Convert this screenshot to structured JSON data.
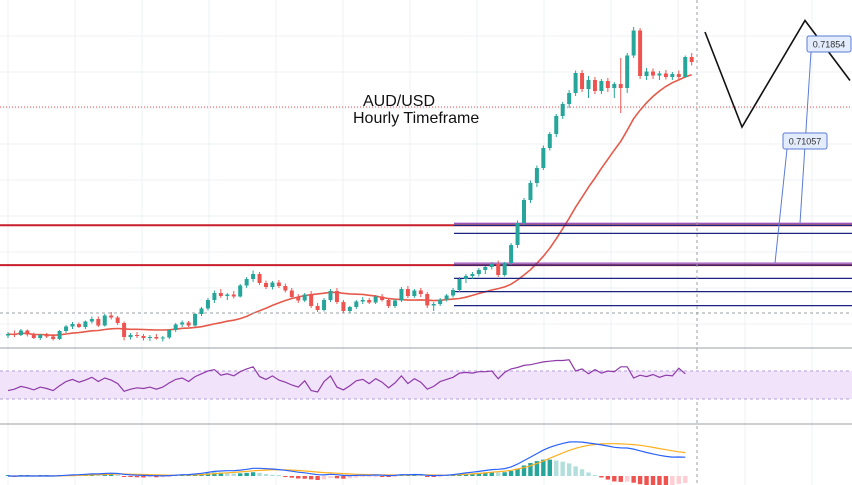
{
  "title": {
    "pair": "AUD/USD",
    "timeframe": "Hourly Timeframe"
  },
  "colors": {
    "background": "#ffffff",
    "grid": "#eef0f4",
    "up_candle": "#26a69a",
    "down_candle": "#ef5350",
    "moving_average": "#e55a4a",
    "resistance_line": "#c81e2c",
    "fib_line": "#1a237e",
    "rsi_line": "#8e3aa8",
    "rsi_band": "#f1e3fa",
    "macd_line": "#2962ff",
    "signal_line": "#ffb020",
    "hist_up_strong": "#26a69a",
    "hist_up_weak": "#b2dfdb",
    "hist_down_strong": "#ef5350",
    "hist_down_weak": "#ffcdd2",
    "projection": "#111111",
    "label_fill": "#e3ecfb",
    "label_border": "#5b7bd5"
  },
  "chart_data": {
    "type": "candlestick",
    "instrument": "AUD/USD",
    "timeframe": "Hourly",
    "price_axis": {
      "visible": false
    },
    "levels": {
      "resistance": 0.71854,
      "support": 0.71057,
      "fib_levels": [
        0.71854,
        0.71692,
        0.71057,
        0.70792,
        0.70527,
        0.70248
      ]
    },
    "level_labels": [
      {
        "text": "0.71854",
        "value": 0.71854
      },
      {
        "text": "0.71057",
        "value": 0.71057
      }
    ],
    "candles": [
      [
        0.6965,
        0.6972,
        0.696,
        0.6968
      ],
      [
        0.6968,
        0.6975,
        0.6962,
        0.6966
      ],
      [
        0.6966,
        0.6978,
        0.6964,
        0.6975
      ],
      [
        0.6975,
        0.6977,
        0.6963,
        0.6967
      ],
      [
        0.6967,
        0.6971,
        0.6958,
        0.696
      ],
      [
        0.696,
        0.6968,
        0.6956,
        0.6966
      ],
      [
        0.6966,
        0.697,
        0.696,
        0.6963
      ],
      [
        0.6963,
        0.6968,
        0.6955,
        0.6958
      ],
      [
        0.6958,
        0.6976,
        0.6956,
        0.6974
      ],
      [
        0.6974,
        0.6986,
        0.697,
        0.6983
      ],
      [
        0.6983,
        0.6992,
        0.6978,
        0.6988
      ],
      [
        0.6988,
        0.6991,
        0.698,
        0.6982
      ],
      [
        0.6982,
        0.6995,
        0.6978,
        0.6993
      ],
      [
        0.6993,
        0.7003,
        0.6989,
        0.6998
      ],
      [
        0.6998,
        0.7003,
        0.6982,
        0.6985
      ],
      [
        0.6985,
        0.7008,
        0.6983,
        0.7005
      ],
      [
        0.7005,
        0.7012,
        0.6997,
        0.7001
      ],
      [
        0.7001,
        0.7004,
        0.6986,
        0.699
      ],
      [
        0.699,
        0.6993,
        0.6955,
        0.6962
      ],
      [
        0.6962,
        0.697,
        0.6957,
        0.6966
      ],
      [
        0.6966,
        0.6972,
        0.696,
        0.6964
      ],
      [
        0.6964,
        0.6968,
        0.6955,
        0.696
      ],
      [
        0.696,
        0.6966,
        0.6954,
        0.6962
      ],
      [
        0.6962,
        0.6968,
        0.6957,
        0.6959
      ],
      [
        0.6959,
        0.6964,
        0.6953,
        0.6961
      ],
      [
        0.6961,
        0.6978,
        0.6958,
        0.6976
      ],
      [
        0.6976,
        0.699,
        0.6972,
        0.6987
      ],
      [
        0.6987,
        0.6995,
        0.6982,
        0.6991
      ],
      [
        0.6991,
        0.6994,
        0.6982,
        0.6985
      ],
      [
        0.6985,
        0.701,
        0.6983,
        0.7008
      ],
      [
        0.7008,
        0.7022,
        0.7004,
        0.7019
      ],
      [
        0.7019,
        0.704,
        0.7015,
        0.7036
      ],
      [
        0.7036,
        0.7055,
        0.703,
        0.705
      ],
      [
        0.705,
        0.7058,
        0.704,
        0.7044
      ],
      [
        0.7044,
        0.705,
        0.7036,
        0.7047
      ],
      [
        0.7047,
        0.7054,
        0.7039,
        0.7043
      ],
      [
        0.7043,
        0.7068,
        0.7041,
        0.7065
      ],
      [
        0.7065,
        0.7082,
        0.706,
        0.7078
      ],
      [
        0.7078,
        0.7095,
        0.7072,
        0.7088
      ],
      [
        0.7088,
        0.7092,
        0.7066,
        0.707
      ],
      [
        0.707,
        0.7075,
        0.7058,
        0.7062
      ],
      [
        0.7062,
        0.7074,
        0.7057,
        0.7071
      ],
      [
        0.7071,
        0.7076,
        0.706,
        0.7064
      ],
      [
        0.7064,
        0.7069,
        0.7051,
        0.7055
      ],
      [
        0.7055,
        0.706,
        0.7038,
        0.7042
      ],
      [
        0.7042,
        0.7048,
        0.703,
        0.7035
      ],
      [
        0.7035,
        0.705,
        0.7032,
        0.7047
      ],
      [
        0.7047,
        0.7054,
        0.702,
        0.7024
      ],
      [
        0.7024,
        0.703,
        0.7012,
        0.7016
      ],
      [
        0.7016,
        0.704,
        0.7013,
        0.7036
      ],
      [
        0.7036,
        0.7058,
        0.7032,
        0.7054
      ],
      [
        0.7054,
        0.706,
        0.7028,
        0.7032
      ],
      [
        0.7032,
        0.7036,
        0.701,
        0.7014
      ],
      [
        0.7014,
        0.7024,
        0.701,
        0.7022
      ],
      [
        0.7022,
        0.7036,
        0.7018,
        0.7033
      ],
      [
        0.7033,
        0.7042,
        0.7028,
        0.7036
      ],
      [
        0.7036,
        0.704,
        0.7028,
        0.7031
      ],
      [
        0.7031,
        0.7046,
        0.7028,
        0.7043
      ],
      [
        0.7043,
        0.7048,
        0.7033,
        0.7036
      ],
      [
        0.7036,
        0.704,
        0.702,
        0.7024
      ],
      [
        0.7024,
        0.7038,
        0.702,
        0.7035
      ],
      [
        0.7035,
        0.7062,
        0.7032,
        0.7058
      ],
      [
        0.7058,
        0.7064,
        0.704,
        0.7044
      ],
      [
        0.7044,
        0.7058,
        0.704,
        0.7055
      ],
      [
        0.7055,
        0.706,
        0.7042,
        0.7048
      ],
      [
        0.7048,
        0.7052,
        0.702,
        0.7025
      ],
      [
        0.7025,
        0.7032,
        0.7014,
        0.7028
      ],
      [
        0.7028,
        0.704,
        0.7024,
        0.7037
      ],
      [
        0.7037,
        0.7048,
        0.7033,
        0.7045
      ],
      [
        0.7045,
        0.706,
        0.7041,
        0.7056
      ],
      [
        0.7056,
        0.7082,
        0.7052,
        0.7078
      ],
      [
        0.7078,
        0.7088,
        0.707,
        0.7084
      ],
      [
        0.7084,
        0.7092,
        0.7078,
        0.7088
      ],
      [
        0.7088,
        0.71,
        0.7083,
        0.7096
      ],
      [
        0.7096,
        0.7104,
        0.7088,
        0.7102
      ],
      [
        0.7102,
        0.7112,
        0.7097,
        0.7108
      ],
      [
        0.7108,
        0.7115,
        0.7082,
        0.7086
      ],
      [
        0.7086,
        0.7112,
        0.7083,
        0.711
      ],
      [
        0.711,
        0.715,
        0.7106,
        0.7146
      ],
      [
        0.7146,
        0.7195,
        0.714,
        0.719
      ],
      [
        0.719,
        0.724,
        0.7186,
        0.7236
      ],
      [
        0.7236,
        0.7275,
        0.723,
        0.727
      ],
      [
        0.727,
        0.7305,
        0.7262,
        0.73
      ],
      [
        0.73,
        0.7345,
        0.7296,
        0.734
      ],
      [
        0.734,
        0.7372,
        0.7335,
        0.7368
      ],
      [
        0.7368,
        0.7408,
        0.7362,
        0.7404
      ],
      [
        0.7404,
        0.7432,
        0.7398,
        0.7428
      ],
      [
        0.7428,
        0.7456,
        0.742,
        0.745
      ],
      [
        0.745,
        0.7495,
        0.7444,
        0.749
      ],
      [
        0.749,
        0.7496,
        0.7452,
        0.7458
      ],
      [
        0.7458,
        0.7484,
        0.744,
        0.7476
      ],
      [
        0.7476,
        0.7482,
        0.7448,
        0.7454
      ],
      [
        0.7454,
        0.7478,
        0.7448,
        0.7474
      ],
      [
        0.7474,
        0.748,
        0.7452,
        0.746
      ],
      [
        0.746,
        0.7472,
        0.744,
        0.7468
      ],
      [
        0.7468,
        0.752,
        0.741,
        0.746
      ],
      [
        0.746,
        0.753,
        0.745,
        0.7525
      ],
      [
        0.7525,
        0.7582,
        0.752,
        0.7575
      ],
      [
        0.7575,
        0.758,
        0.7478,
        0.7484
      ],
      [
        0.7484,
        0.75,
        0.7476,
        0.7493
      ],
      [
        0.7493,
        0.7499,
        0.7478,
        0.7485
      ],
      [
        0.7485,
        0.7494,
        0.7476,
        0.7489
      ],
      [
        0.7489,
        0.7496,
        0.7477,
        0.7482
      ],
      [
        0.7482,
        0.7492,
        0.7476,
        0.7488
      ],
      [
        0.7488,
        0.7495,
        0.7478,
        0.7482
      ],
      [
        0.7482,
        0.7525,
        0.748,
        0.7522
      ],
      [
        0.7522,
        0.753,
        0.7505,
        0.7512
      ]
    ],
    "projection_path": [
      0.7572,
      0.7382,
      0.7595,
      0.7475
    ],
    "rsi": {
      "values": [
        42,
        44,
        48,
        46,
        43,
        47,
        45,
        42,
        49,
        55,
        58,
        54,
        57,
        61,
        55,
        60,
        57,
        52,
        41,
        44,
        46,
        45,
        47,
        44,
        47,
        53,
        58,
        60,
        55,
        62,
        66,
        70,
        72,
        64,
        66,
        63,
        69,
        73,
        76,
        62,
        58,
        63,
        57,
        54,
        50,
        47,
        56,
        42,
        40,
        55,
        63,
        47,
        43,
        49,
        56,
        58,
        52,
        59,
        54,
        46,
        53,
        63,
        52,
        59,
        54,
        44,
        48,
        55,
        58,
        61,
        67,
        68,
        67,
        69,
        69,
        70,
        59,
        68,
        73,
        75,
        78,
        79,
        81,
        83,
        84,
        85,
        85,
        86,
        70,
        73,
        66,
        72,
        67,
        70,
        69,
        76,
        76,
        60,
        64,
        62,
        65,
        61,
        64,
        63,
        74,
        66
      ],
      "overbought": 70,
      "oversold": 30
    },
    "macd": {
      "macd": [
        0,
        -0.1,
        0,
        0.1,
        0,
        0,
        0.1,
        0,
        0.2,
        0.5,
        0.8,
        0.9,
        1.2,
        1.5,
        1.5,
        1.8,
        2,
        1.8,
        1.2,
        0.8,
        0.6,
        0.4,
        0.3,
        0.2,
        0.1,
        0.3,
        0.6,
        0.9,
        1,
        1.4,
        1.9,
        2.6,
        3.3,
        3.6,
        3.8,
        3.8,
        4.2,
        4.8,
        5.5,
        5.5,
        5.2,
        5,
        4.6,
        4.1,
        3.4,
        2.7,
        2.3,
        1.6,
        0.9,
        0.8,
        1.2,
        0.9,
        0.4,
        0.3,
        0.4,
        0.6,
        0.5,
        0.7,
        0.6,
        0.3,
        0.4,
        0.9,
        0.9,
        1.1,
        1,
        0.5,
        0.3,
        0.4,
        0.6,
        1,
        1.6,
        2.2,
        2.7,
        3.3,
        3.9,
        4.6,
        4.8,
        5.3,
        6.5,
        8.5,
        11,
        13.5,
        16,
        18.5,
        20.5,
        22,
        23.3,
        24.3,
        24.4,
        24.2,
        23.6,
        22.9,
        22.2,
        21.4,
        20.5,
        20.1,
        20,
        19.2,
        18,
        16.8,
        15.8,
        14.8,
        14,
        13.5,
        13.6,
        13.4
      ],
      "signal": [
        0,
        0,
        0,
        0,
        0,
        0,
        0,
        0,
        0.1,
        0.2,
        0.3,
        0.4,
        0.6,
        0.8,
        1,
        1.1,
        1.3,
        1.4,
        1.4,
        1.3,
        1.2,
        1.1,
        0.9,
        0.8,
        0.7,
        0.6,
        0.6,
        0.7,
        0.7,
        0.8,
        1,
        1.3,
        1.7,
        2,
        2.3,
        2.6,
        2.9,
        3.3,
        3.7,
        4,
        4.2,
        4.4,
        4.4,
        4.4,
        4.2,
        3.9,
        3.6,
        3.2,
        2.8,
        2.4,
        2.2,
        2,
        1.7,
        1.4,
        1.2,
        1.1,
        1,
        0.9,
        0.8,
        0.7,
        0.7,
        0.7,
        0.7,
        0.8,
        0.8,
        0.8,
        0.7,
        0.6,
        0.6,
        0.7,
        0.9,
        1.2,
        1.5,
        1.8,
        2.2,
        2.7,
        3.1,
        3.5,
        4.1,
        5,
        6,
        7.3,
        8.9,
        10.7,
        12.7,
        14.6,
        16.5,
        18.3,
        19.8,
        21,
        21.9,
        22.5,
        22.9,
        23.1,
        23.1,
        22.9,
        22.7,
        22.4,
        21.9,
        21.2,
        20.4,
        19.6,
        18.8,
        18,
        17.3,
        16.7
      ]
    }
  }
}
